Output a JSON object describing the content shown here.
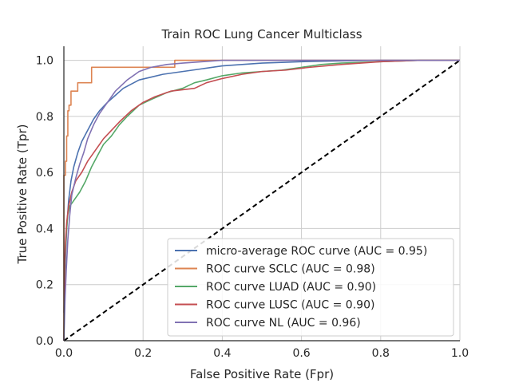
{
  "chart_data": {
    "type": "line",
    "title": "Train ROC Lung Cancer Multiclass",
    "xlabel": "False Positive Rate (Fpr)",
    "ylabel": "True Positive Rate (Tpr)",
    "xlim": [
      0.0,
      1.0
    ],
    "ylim": [
      0.0,
      1.05
    ],
    "xticks": [
      0.0,
      0.2,
      0.4,
      0.6,
      0.8,
      1.0
    ],
    "yticks": [
      0.0,
      0.2,
      0.4,
      0.6,
      0.8,
      1.0
    ],
    "xtick_labels": [
      "0.0",
      "0.2",
      "0.4",
      "0.6",
      "0.8",
      "1.0"
    ],
    "ytick_labels": [
      "0.0",
      "0.2",
      "0.4",
      "0.6",
      "0.8",
      "1.0"
    ],
    "grid": true,
    "legend_position": "lower-right",
    "series": [
      {
        "name": "micro-average ROC curve (AUC = 0.95)",
        "color": "#4c72b0",
        "points": [
          [
            0,
            0.1
          ],
          [
            0.002,
            0.2
          ],
          [
            0.005,
            0.33
          ],
          [
            0.008,
            0.42
          ],
          [
            0.012,
            0.5
          ],
          [
            0.018,
            0.57
          ],
          [
            0.025,
            0.62
          ],
          [
            0.035,
            0.67
          ],
          [
            0.045,
            0.71
          ],
          [
            0.06,
            0.75
          ],
          [
            0.075,
            0.79
          ],
          [
            0.09,
            0.82
          ],
          [
            0.11,
            0.85
          ],
          [
            0.13,
            0.875
          ],
          [
            0.15,
            0.9
          ],
          [
            0.17,
            0.915
          ],
          [
            0.19,
            0.93
          ],
          [
            0.22,
            0.94
          ],
          [
            0.25,
            0.95
          ],
          [
            0.3,
            0.96
          ],
          [
            0.35,
            0.97
          ],
          [
            0.4,
            0.98
          ],
          [
            0.45,
            0.985
          ],
          [
            0.5,
            0.99
          ],
          [
            0.6,
            0.995
          ],
          [
            0.7,
            0.998
          ],
          [
            0.8,
            1.0
          ],
          [
            1.0,
            1.0
          ]
        ]
      },
      {
        "name": "ROC curve SCLC (AUC = 0.98)",
        "color": "#dd8452",
        "points": [
          [
            0,
            0
          ],
          [
            0,
            0.59
          ],
          [
            0.004,
            0.59
          ],
          [
            0.004,
            0.64
          ],
          [
            0.007,
            0.64
          ],
          [
            0.007,
            0.73
          ],
          [
            0.01,
            0.73
          ],
          [
            0.01,
            0.82
          ],
          [
            0.013,
            0.82
          ],
          [
            0.013,
            0.84
          ],
          [
            0.018,
            0.84
          ],
          [
            0.018,
            0.89
          ],
          [
            0.035,
            0.89
          ],
          [
            0.035,
            0.92
          ],
          [
            0.07,
            0.92
          ],
          [
            0.07,
            0.975
          ],
          [
            0.28,
            0.975
          ],
          [
            0.28,
            1.0
          ],
          [
            1.0,
            1.0
          ]
        ]
      },
      {
        "name": "ROC curve LUAD (AUC = 0.90)",
        "color": "#55a868",
        "points": [
          [
            0,
            0
          ],
          [
            0.003,
            0.3
          ],
          [
            0.006,
            0.38
          ],
          [
            0.01,
            0.45
          ],
          [
            0.015,
            0.48
          ],
          [
            0.025,
            0.5
          ],
          [
            0.04,
            0.53
          ],
          [
            0.055,
            0.57
          ],
          [
            0.07,
            0.62
          ],
          [
            0.085,
            0.66
          ],
          [
            0.1,
            0.7
          ],
          [
            0.12,
            0.73
          ],
          [
            0.14,
            0.77
          ],
          [
            0.16,
            0.8
          ],
          [
            0.19,
            0.84
          ],
          [
            0.22,
            0.86
          ],
          [
            0.26,
            0.885
          ],
          [
            0.3,
            0.9
          ],
          [
            0.33,
            0.92
          ],
          [
            0.36,
            0.93
          ],
          [
            0.4,
            0.945
          ],
          [
            0.45,
            0.955
          ],
          [
            0.5,
            0.96
          ],
          [
            0.55,
            0.965
          ],
          [
            0.6,
            0.975
          ],
          [
            0.65,
            0.985
          ],
          [
            0.7,
            0.99
          ],
          [
            0.8,
            0.995
          ],
          [
            0.9,
            1.0
          ],
          [
            1.0,
            1.0
          ]
        ]
      },
      {
        "name": "ROC curve LUSC (AUC = 0.90)",
        "color": "#c44e52",
        "points": [
          [
            0,
            0
          ],
          [
            0.002,
            0.28
          ],
          [
            0.004,
            0.35
          ],
          [
            0.007,
            0.42
          ],
          [
            0.012,
            0.48
          ],
          [
            0.02,
            0.53
          ],
          [
            0.03,
            0.57
          ],
          [
            0.045,
            0.6
          ],
          [
            0.06,
            0.64
          ],
          [
            0.08,
            0.68
          ],
          [
            0.1,
            0.72
          ],
          [
            0.12,
            0.75
          ],
          [
            0.14,
            0.78
          ],
          [
            0.17,
            0.82
          ],
          [
            0.2,
            0.85
          ],
          [
            0.23,
            0.87
          ],
          [
            0.27,
            0.89
          ],
          [
            0.3,
            0.895
          ],
          [
            0.33,
            0.9
          ],
          [
            0.36,
            0.92
          ],
          [
            0.4,
            0.935
          ],
          [
            0.45,
            0.95
          ],
          [
            0.5,
            0.96
          ],
          [
            0.56,
            0.965
          ],
          [
            0.62,
            0.975
          ],
          [
            0.7,
            0.985
          ],
          [
            0.8,
            0.995
          ],
          [
            0.9,
            1.0
          ],
          [
            1.0,
            1.0
          ]
        ]
      },
      {
        "name": "ROC curve NL (AUC = 0.96)",
        "color": "#8172b3",
        "points": [
          [
            0,
            0
          ],
          [
            0.003,
            0.15
          ],
          [
            0.006,
            0.25
          ],
          [
            0.01,
            0.36
          ],
          [
            0.015,
            0.45
          ],
          [
            0.02,
            0.52
          ],
          [
            0.03,
            0.58
          ],
          [
            0.04,
            0.63
          ],
          [
            0.05,
            0.67
          ],
          [
            0.06,
            0.72
          ],
          [
            0.075,
            0.77
          ],
          [
            0.09,
            0.81
          ],
          [
            0.11,
            0.85
          ],
          [
            0.13,
            0.89
          ],
          [
            0.16,
            0.93
          ],
          [
            0.19,
            0.96
          ],
          [
            0.22,
            0.975
          ],
          [
            0.26,
            0.985
          ],
          [
            0.3,
            0.99
          ],
          [
            0.35,
            0.995
          ],
          [
            0.4,
            1.0
          ],
          [
            1.0,
            1.0
          ]
        ]
      }
    ],
    "reference_line": {
      "color": "#000000",
      "dash": "dashed",
      "points": [
        [
          0,
          0
        ],
        [
          1,
          1
        ]
      ]
    }
  }
}
